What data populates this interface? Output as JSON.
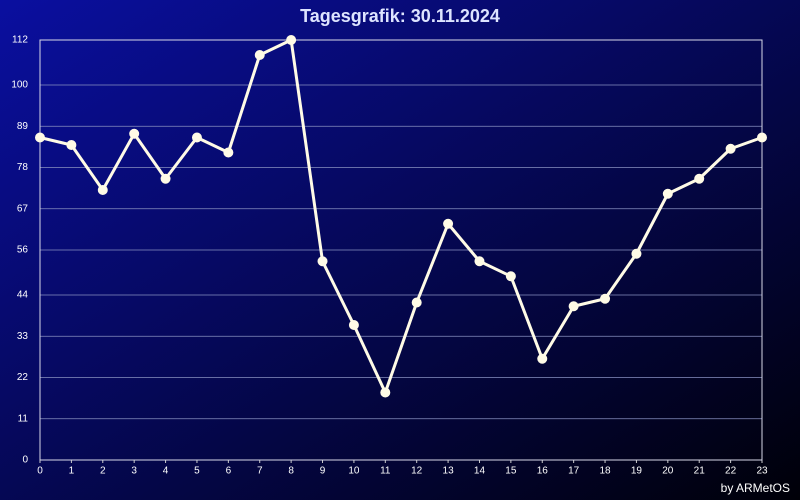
{
  "chart_data": {
    "type": "line",
    "title": "Tagesgrafik: 30.11.2024",
    "credit": "by ARMetOS",
    "x": [
      0,
      1,
      2,
      3,
      4,
      5,
      6,
      7,
      8,
      9,
      10,
      11,
      12,
      13,
      14,
      15,
      16,
      17,
      18,
      19,
      20,
      21,
      22,
      23
    ],
    "series": [
      {
        "color": "#fffbe6",
        "values": [
          86,
          84,
          72,
          87,
          75,
          86,
          82,
          108,
          112,
          53,
          36,
          18,
          42,
          63,
          53,
          49,
          27,
          41,
          43,
          55,
          71,
          75,
          83,
          86
        ]
      }
    ],
    "xlim": [
      0,
      23
    ],
    "xticks": [
      0,
      1,
      2,
      3,
      4,
      5,
      6,
      7,
      8,
      9,
      10,
      11,
      12,
      13,
      14,
      15,
      16,
      17,
      18,
      19,
      20,
      21,
      22,
      23
    ],
    "ylim": [
      0,
      112
    ],
    "yticks": [
      0,
      11,
      22,
      33,
      44,
      56,
      67,
      78,
      89,
      100,
      112
    ],
    "grid": true
  }
}
